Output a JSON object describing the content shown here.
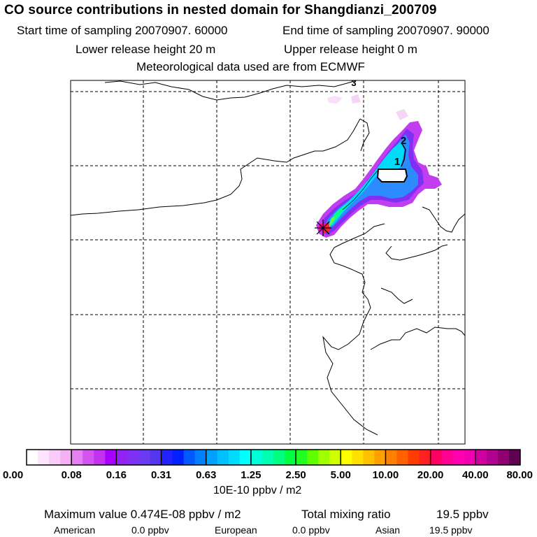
{
  "header": {
    "title": "CO  source contributions in nested domain for Shangdianzi_200709",
    "start_time": "Start time of sampling 20070907. 60000",
    "end_time": "End time of sampling 20070907. 90000",
    "lower_release": "Lower release height   20 m",
    "upper_release": "Upper release height    0 m",
    "met_data": "Meteorological data used are from ECMWF"
  },
  "map": {
    "contour_labels": [
      "3",
      "2",
      "1"
    ],
    "station_marker": "receptor-star-icon"
  },
  "colorbar": {
    "tick_labels": [
      "0.00",
      "0.08",
      "0.16",
      "0.31",
      "0.63",
      "1.25",
      "2.50",
      "5.00",
      "10.00",
      "20.00",
      "40.00",
      "80.00"
    ],
    "colors": [
      "#ffffff",
      "#fde6fd",
      "#f8ccf8",
      "#f3b0f3",
      "#e680f2",
      "#d255f0",
      "#c230f0",
      "#a800ff",
      "#9522f5",
      "#7f30f5",
      "#6a3af0",
      "#5535ee",
      "#2222ff",
      "#0020ff",
      "#0058ff",
      "#0080ff",
      "#00a0ff",
      "#00c0ff",
      "#00dcff",
      "#00ffff",
      "#00ffd8",
      "#00ffb0",
      "#00ff80",
      "#00ff40",
      "#20ff20",
      "#60ff00",
      "#a0ff00",
      "#d0ff00",
      "#ffff00",
      "#ffe000",
      "#ffc000",
      "#ffa000",
      "#ff8000",
      "#ff6000",
      "#ff3c00",
      "#ff2020",
      "#ff0060",
      "#ff0090",
      "#ff00b0",
      "#f000b0",
      "#d000a0",
      "#b00090",
      "#900070",
      "#600050"
    ],
    "units": "10E-10 ppbv / m2"
  },
  "summary": {
    "max_value": "Maximum value  0.474E-08 ppbv / m2",
    "total_label": "Total mixing ratio",
    "total_value": "19.5 ppbv",
    "american_label": "American",
    "american_value": "0.0 ppbv",
    "european_label": "European",
    "european_value": "0.0 ppbv",
    "asian_label": "Asian",
    "asian_value": "19.5 ppbv"
  }
}
